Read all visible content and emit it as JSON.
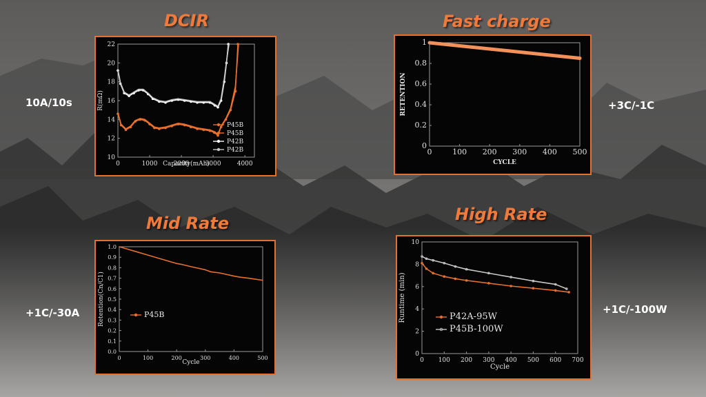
{
  "colors": {
    "accent": "#f07a3a",
    "panel_bg": "#050505",
    "orange_series": "#e8702f",
    "gray_series": "#c8c8c8",
    "white_series": "#ffffff"
  },
  "sections": {
    "dcir": {
      "title": "DCIR",
      "condition": "10A/10s"
    },
    "fast_charge": {
      "title": "Fast charge",
      "condition": "+3C/-1C"
    },
    "mid_rate": {
      "title": "Mid Rate",
      "condition": "+1C/-30A"
    },
    "high_rate": {
      "title": "High Rate",
      "condition": "+1C/-100W"
    }
  },
  "chart_data": [
    {
      "id": "dcir",
      "type": "line",
      "xlabel": "Capacity(mAh)",
      "ylabel": "R(mΩ)",
      "xlim": [
        0,
        4300
      ],
      "ylim": [
        10,
        22
      ],
      "xticks": [
        0,
        1000,
        2000,
        3000,
        4000
      ],
      "yticks": [
        10,
        12,
        14,
        16,
        18,
        20,
        22
      ],
      "xtick_labels": [
        "0",
        "1000",
        "2000",
        "3000",
        "4000"
      ],
      "ytick_labels": [
        "10",
        "12",
        "14",
        "16",
        "18",
        "20",
        "22"
      ],
      "grid": false,
      "legend": "bottom-right",
      "series": [
        {
          "name": "P45B",
          "color": "#e8702f",
          "marker": "dot",
          "x": [
            0,
            100,
            250,
            400,
            550,
            700,
            850,
            1000,
            1150,
            1300,
            1500,
            1700,
            1900,
            2100,
            2300,
            2500,
            2700,
            2900,
            3050,
            3150,
            3250,
            3400,
            3550,
            3700,
            3780
          ],
          "y": [
            14.6,
            13.4,
            12.9,
            13.2,
            13.8,
            14.0,
            13.9,
            13.5,
            13.1,
            13.0,
            13.1,
            13.3,
            13.5,
            13.4,
            13.2,
            13.0,
            12.9,
            12.8,
            12.6,
            12.3,
            13.2,
            14.0,
            15.0,
            17.0,
            22.0
          ]
        },
        {
          "name": "P45B",
          "color": "#e8702f",
          "marker": "none",
          "x": [
            0,
            100,
            250,
            400,
            550,
            700,
            850,
            1000,
            1150,
            1300,
            1500,
            1700,
            1900,
            2100,
            2300,
            2500,
            2700,
            2900,
            3050,
            3150,
            3250,
            3400,
            3550,
            3700,
            3800
          ],
          "y": [
            14.7,
            13.5,
            13.0,
            13.3,
            13.9,
            14.1,
            14.0,
            13.6,
            13.2,
            13.1,
            13.2,
            13.4,
            13.6,
            13.5,
            13.3,
            13.1,
            13.0,
            12.9,
            12.7,
            12.4,
            13.3,
            14.1,
            15.2,
            17.5,
            22.0
          ]
        },
        {
          "name": "P42B",
          "color": "#ffffff",
          "marker": "dot",
          "x": [
            0,
            80,
            200,
            350,
            500,
            650,
            800,
            950,
            1100,
            1300,
            1500,
            1700,
            1900,
            2100,
            2300,
            2500,
            2700,
            2900,
            3050,
            3150,
            3250,
            3350,
            3420,
            3480
          ],
          "y": [
            19.2,
            17.8,
            16.8,
            16.5,
            16.8,
            17.1,
            17.1,
            16.7,
            16.2,
            15.9,
            15.8,
            16.0,
            16.1,
            16.0,
            15.9,
            15.8,
            15.8,
            15.8,
            15.5,
            15.3,
            16.0,
            18.0,
            20.0,
            22.0
          ]
        },
        {
          "name": "P42B",
          "color": "#c8c8c8",
          "marker": "none",
          "x": [
            0,
            80,
            200,
            350,
            500,
            650,
            800,
            950,
            1100,
            1300,
            1500,
            1700,
            1900,
            2100,
            2300,
            2500,
            2700,
            2900,
            3050,
            3150,
            3250,
            3350,
            3430,
            3500
          ],
          "y": [
            19.3,
            17.9,
            16.9,
            16.6,
            16.9,
            17.2,
            17.2,
            16.8,
            16.3,
            16.0,
            15.9,
            16.1,
            16.2,
            16.1,
            16.0,
            15.9,
            15.9,
            15.9,
            15.6,
            15.4,
            16.2,
            18.3,
            20.4,
            22.0
          ]
        }
      ]
    },
    {
      "id": "fast_charge",
      "type": "line",
      "xlabel": "CYCLE",
      "ylabel": "RETENTION",
      "xlim": [
        0,
        500
      ],
      "ylim": [
        0,
        1
      ],
      "xticks": [
        0,
        100,
        200,
        300,
        400,
        500
      ],
      "yticks": [
        0,
        0.2,
        0.4,
        0.6,
        0.8,
        1
      ],
      "xtick_labels": [
        "0",
        "100",
        "200",
        "300",
        "400",
        "500"
      ],
      "ytick_labels": [
        "0",
        "0.2",
        "0.4",
        "0.6",
        "0.8",
        "1"
      ],
      "grid": false,
      "series": [
        {
          "color": "#f2925a",
          "x": [
            0,
            50,
            100,
            150,
            200,
            250,
            300,
            350,
            400,
            450,
            500
          ],
          "y": [
            1.0,
            0.985,
            0.97,
            0.955,
            0.94,
            0.925,
            0.91,
            0.895,
            0.88,
            0.865,
            0.85
          ]
        }
      ]
    },
    {
      "id": "mid_rate",
      "type": "line",
      "xlabel": "Cycle",
      "ylabel": "Retention(Cn/C1)",
      "xlim": [
        0,
        500
      ],
      "ylim": [
        0,
        1
      ],
      "xticks": [
        0,
        100,
        200,
        300,
        400,
        500
      ],
      "yticks": [
        0,
        0.1,
        0.2,
        0.3,
        0.4,
        0.5,
        0.6,
        0.7,
        0.8,
        0.9,
        1.0
      ],
      "xtick_labels": [
        "0",
        "100",
        "200",
        "300",
        "400",
        "500"
      ],
      "ytick_labels": [
        "0.0",
        "0.1",
        "0.2",
        "0.3",
        "0.4",
        "0.5",
        "0.6",
        "0.7",
        "0.8",
        "0.9",
        "1.0"
      ],
      "grid": false,
      "legend": "center-left",
      "series": [
        {
          "name": "P45B",
          "color": "#e8702f",
          "x": [
            0,
            25,
            50,
            100,
            150,
            200,
            220,
            250,
            300,
            320,
            350,
            400,
            420,
            450,
            500
          ],
          "y": [
            1.0,
            0.98,
            0.96,
            0.92,
            0.88,
            0.84,
            0.83,
            0.81,
            0.78,
            0.76,
            0.75,
            0.72,
            0.71,
            0.7,
            0.68
          ]
        }
      ]
    },
    {
      "id": "high_rate",
      "type": "line",
      "xlabel": "Cycle",
      "ylabel": "Runtime (min)",
      "xlim": [
        0,
        700
      ],
      "ylim": [
        0,
        10
      ],
      "xticks": [
        0,
        100,
        200,
        300,
        400,
        500,
        600,
        700
      ],
      "yticks": [
        0,
        2,
        4,
        6,
        8,
        10
      ],
      "xtick_labels": [
        "0",
        "100",
        "200",
        "300",
        "400",
        "500",
        "600",
        "700"
      ],
      "ytick_labels": [
        "0",
        "2",
        "4",
        "6",
        "8",
        "10"
      ],
      "grid": false,
      "legend": "bottom-left",
      "series": [
        {
          "name": "P42A-95W",
          "color": "#e8702f",
          "marker": "dot",
          "x": [
            0,
            20,
            50,
            100,
            150,
            200,
            300,
            400,
            500,
            600,
            660
          ],
          "y": [
            8.1,
            7.6,
            7.2,
            6.9,
            6.7,
            6.55,
            6.3,
            6.05,
            5.85,
            5.65,
            5.5
          ]
        },
        {
          "name": "P45B-100W",
          "color": "#c8c8c8",
          "marker": "ring",
          "x": [
            0,
            20,
            50,
            100,
            150,
            200,
            300,
            400,
            500,
            600,
            650
          ],
          "y": [
            8.7,
            8.5,
            8.35,
            8.1,
            7.8,
            7.55,
            7.2,
            6.85,
            6.5,
            6.2,
            5.8
          ]
        }
      ]
    }
  ]
}
